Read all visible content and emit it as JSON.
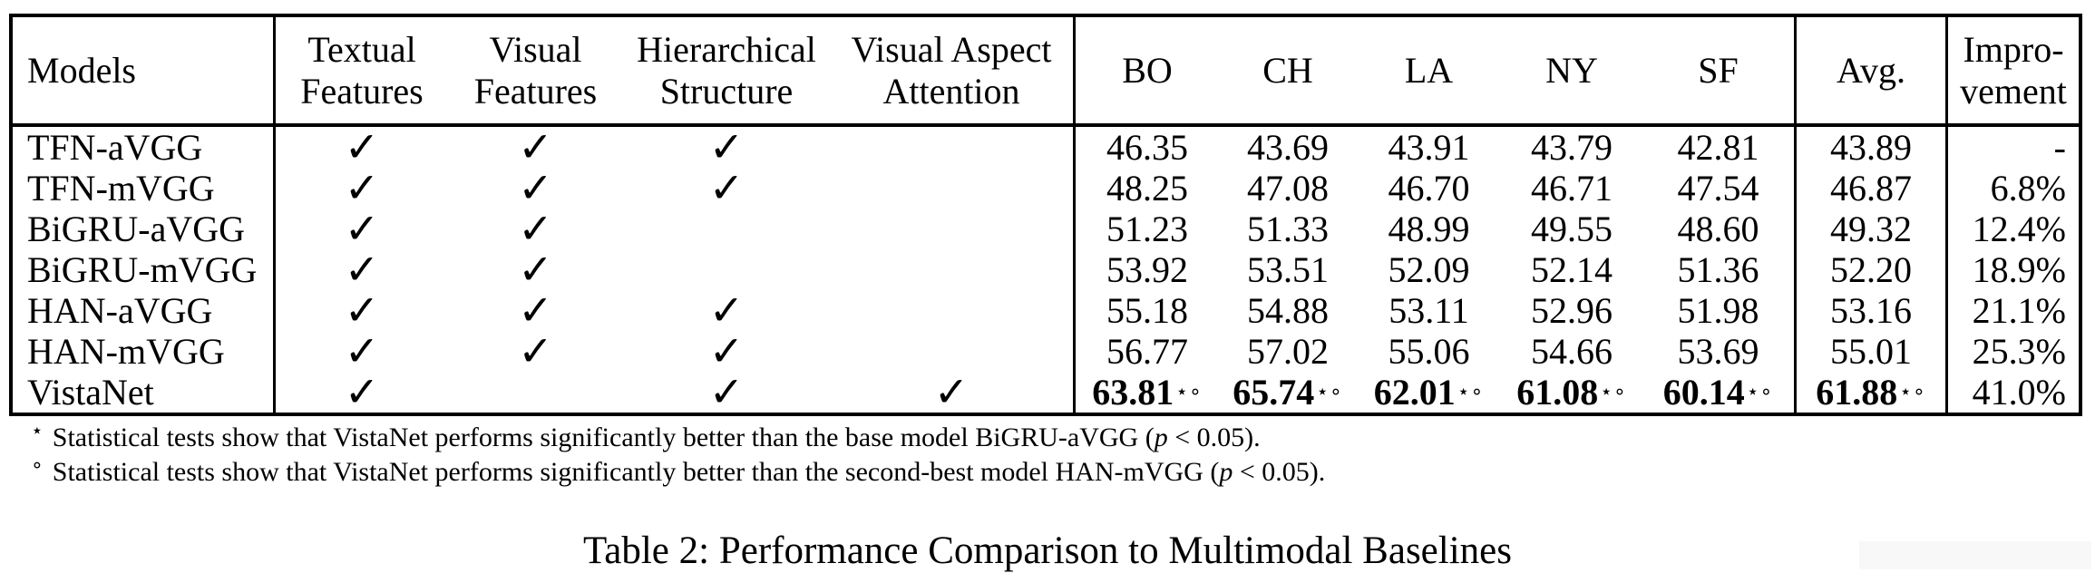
{
  "table": {
    "headers": {
      "models": "Models",
      "textual_features": "Textual Features",
      "visual_features": "Visual Features",
      "hierarchical_structure": "Hierarchical Structure",
      "visual_aspect_attention": "Visual Aspect Attention",
      "cities": [
        "BO",
        "CH",
        "LA",
        "NY",
        "SF"
      ],
      "avg": "Avg.",
      "improvement_line1": "Impro-",
      "improvement_line2": "vement"
    },
    "rows": [
      {
        "model": "TFN-aVGG",
        "textual": true,
        "visual": true,
        "hierarchical": true,
        "visual_aspect_attention": false,
        "scores": [
          "46.35",
          "43.69",
          "43.91",
          "43.79",
          "42.81"
        ],
        "avg": "43.89",
        "improvement": "-",
        "bold": false,
        "sup": ""
      },
      {
        "model": "TFN-mVGG",
        "textual": true,
        "visual": true,
        "hierarchical": true,
        "visual_aspect_attention": false,
        "scores": [
          "48.25",
          "47.08",
          "46.70",
          "46.71",
          "47.54"
        ],
        "avg": "46.87",
        "improvement": "6.8%",
        "bold": false,
        "sup": ""
      },
      {
        "model": "BiGRU-aVGG",
        "textual": true,
        "visual": true,
        "hierarchical": false,
        "visual_aspect_attention": false,
        "scores": [
          "51.23",
          "51.33",
          "48.99",
          "49.55",
          "48.60"
        ],
        "avg": "49.32",
        "improvement": "12.4%",
        "bold": false,
        "sup": ""
      },
      {
        "model": "BiGRU-mVGG",
        "textual": true,
        "visual": true,
        "hierarchical": false,
        "visual_aspect_attention": false,
        "scores": [
          "53.92",
          "53.51",
          "52.09",
          "52.14",
          "51.36"
        ],
        "avg": "52.20",
        "improvement": "18.9%",
        "bold": false,
        "sup": ""
      },
      {
        "model": "HAN-aVGG",
        "textual": true,
        "visual": true,
        "hierarchical": true,
        "visual_aspect_attention": false,
        "scores": [
          "55.18",
          "54.88",
          "53.11",
          "52.96",
          "51.98"
        ],
        "avg": "53.16",
        "improvement": "21.1%",
        "bold": false,
        "sup": ""
      },
      {
        "model": "HAN-mVGG",
        "textual": true,
        "visual": true,
        "hierarchical": true,
        "visual_aspect_attention": false,
        "scores": [
          "56.77",
          "57.02",
          "55.06",
          "54.66",
          "53.69"
        ],
        "avg": "55.01",
        "improvement": "25.3%",
        "bold": false,
        "sup": ""
      },
      {
        "model": "VistaNet",
        "textual": true,
        "visual": false,
        "hierarchical": true,
        "visual_aspect_attention": true,
        "scores": [
          "63.81",
          "65.74",
          "62.01",
          "61.08",
          "60.14"
        ],
        "avg": "61.88",
        "improvement": "41.0%",
        "bold": true,
        "sup": "⋆∘"
      }
    ]
  },
  "icons": {
    "checkmark": "✓"
  },
  "footnotes": [
    {
      "marker": "⋆",
      "text": "Statistical tests show that VistaNet performs significantly better than the base model BiGRU-aVGG (",
      "pvar": "p",
      "tail": " < 0.05)."
    },
    {
      "marker": "∘",
      "text": "Statistical tests show that VistaNet performs significantly better than the second-best model HAN-mVGG (",
      "pvar": "p",
      "tail": " < 0.05)."
    }
  ],
  "caption": "Table 2: Performance Comparison to Multimodal Baselines",
  "colors": {
    "text": "#000000",
    "background": "#ffffff",
    "highlight_box": "#f8f8f8"
  }
}
